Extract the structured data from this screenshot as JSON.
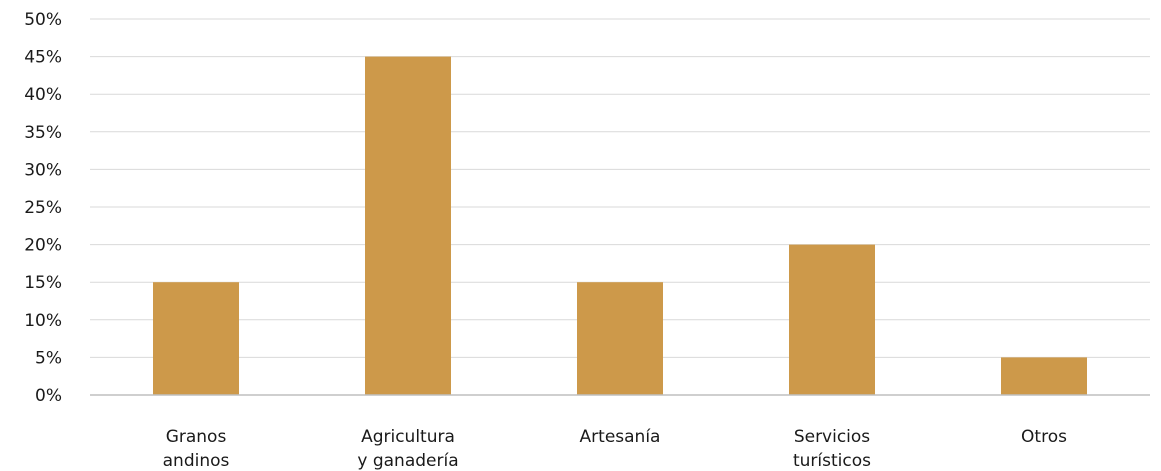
{
  "chart_data": {
    "type": "bar",
    "categories": [
      [
        "Granos",
        "andinos"
      ],
      [
        "Agricultura",
        "y ganadería"
      ],
      [
        "Artesanía"
      ],
      [
        "Servicios",
        "turísticos"
      ],
      [
        "Otros"
      ]
    ],
    "values": [
      15,
      45,
      15,
      20,
      5
    ],
    "y_ticks": [
      "0%",
      "5%",
      "10%",
      "15%",
      "20%",
      "25%",
      "30%",
      "35%",
      "40%",
      "45%",
      "50%"
    ],
    "ylim": [
      0,
      50
    ],
    "y_step": 5,
    "grid": true,
    "legend": "none",
    "title": "",
    "xlabel": "",
    "ylabel": "",
    "colors": {
      "bar": "#CD994A",
      "grid": "#D9D9D9",
      "axis": "#BFBFBF",
      "text": "#1A1A1A"
    }
  }
}
